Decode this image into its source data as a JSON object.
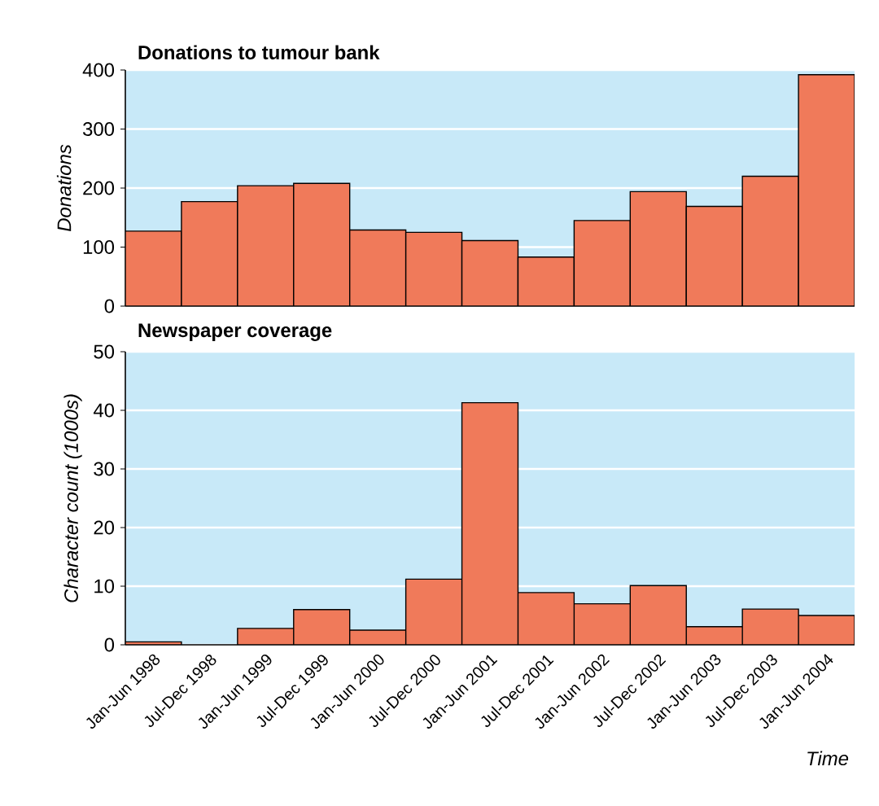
{
  "chart_data": [
    {
      "type": "bar",
      "title": "Donations to tumour bank",
      "ylabel": "Donations",
      "categories": [
        null,
        null,
        null,
        null,
        null,
        null,
        null,
        null,
        null,
        null,
        null,
        null,
        null
      ],
      "values": [
        127,
        177,
        204,
        208,
        129,
        125,
        111,
        83,
        145,
        194,
        169,
        220,
        392
      ],
      "color": "#f07a5a",
      "ylim": [
        0,
        400
      ],
      "yticks": [
        0,
        100,
        200,
        300,
        400
      ],
      "grid": "y"
    },
    {
      "type": "bar",
      "title": "Newspaper coverage",
      "ylabel": "Character count (1000s)",
      "xlabel": "Time",
      "categories": [
        "Jan-Jun 1998",
        "Jul-Dec 1998",
        "Jan-Jun 1999",
        "Jul-Dec 1999",
        "Jan-Jun 2000",
        "Jul-Dec 2000",
        "Jan-Jun 2001",
        "Jul-Dec 2001",
        "Jan-Jun 2002",
        "Jul-Dec 2002",
        "Jan-Jun 2003",
        "Jul-Dec 2003",
        "Jan-Jun 2004"
      ],
      "values": [
        0.5,
        null,
        2.8,
        6.0,
        2.5,
        11.2,
        41.3,
        8.9,
        7.0,
        10.1,
        3.1,
        6.1,
        5.0
      ],
      "color": "#f07a5a",
      "ylim": [
        0,
        50
      ],
      "yticks": [
        0,
        10,
        20,
        30,
        40,
        50
      ],
      "grid": "y"
    }
  ]
}
